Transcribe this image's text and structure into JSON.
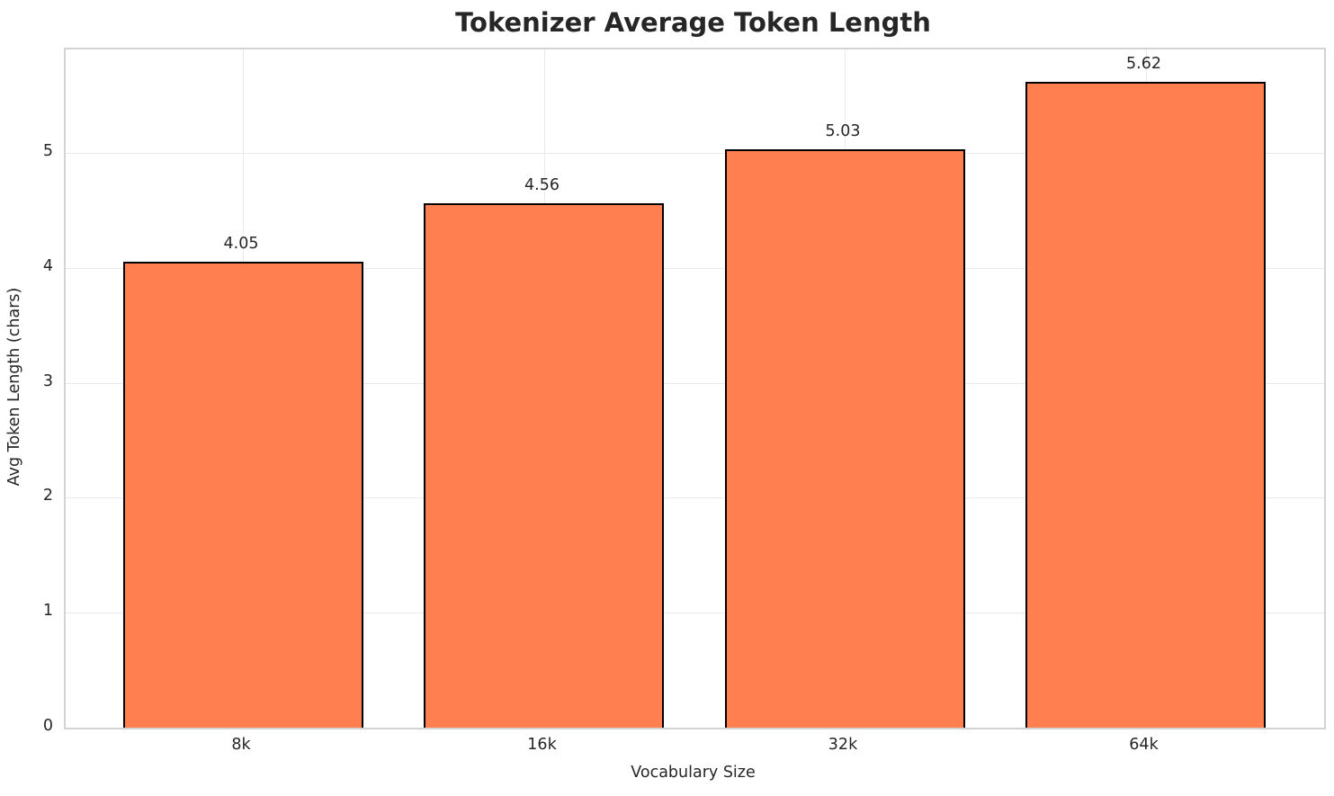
{
  "chart_data": {
    "type": "bar",
    "title": "Tokenizer Average Token Length",
    "xlabel": "Vocabulary Size",
    "ylabel": "Avg Token Length (chars)",
    "categories": [
      "8k",
      "16k",
      "32k",
      "64k"
    ],
    "values": [
      4.05,
      4.56,
      5.03,
      5.62
    ],
    "bar_labels": [
      "4.05",
      "4.56",
      "5.03",
      "5.62"
    ],
    "yticks": [
      0,
      1,
      2,
      3,
      4,
      5
    ],
    "ylim": [
      0,
      5.9
    ],
    "grid": true,
    "legend": "none",
    "bar_color": "#FF7F50",
    "bar_edge_color": "#000000",
    "grid_color": "#e9e9e9",
    "spine_color": "#d3d3d3",
    "text_color": "#262626"
  }
}
